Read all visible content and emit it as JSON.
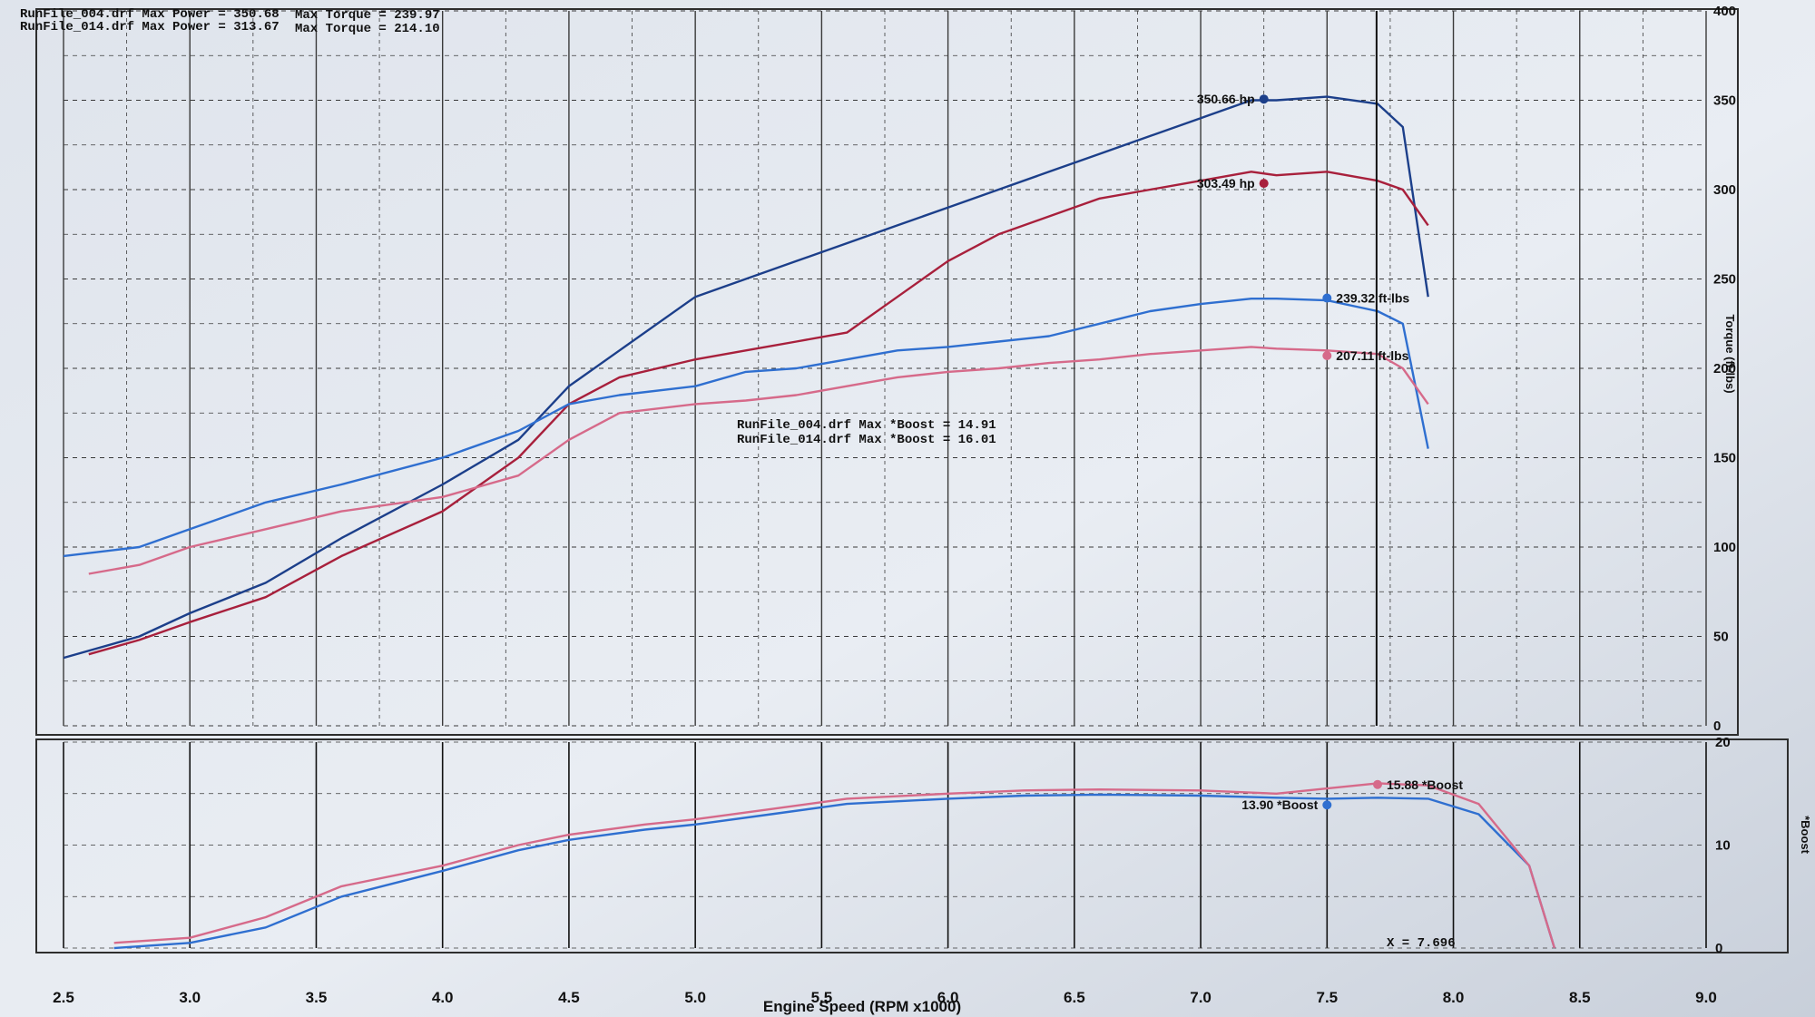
{
  "header": {
    "lines": [
      {
        "power": "RunFile_004.drf Max Power = 350.68",
        "torque": "Max Torque = 239.97"
      },
      {
        "power": "RunFile_014.drf Max Power = 313.67",
        "torque": "Max Torque = 214.10"
      }
    ]
  },
  "boost_note": {
    "lines": [
      "RunFile_004.drf Max *Boost = 14.91",
      "RunFile_014.drf Max *Boost = 16.01"
    ]
  },
  "cursor_label": "X = 7.696",
  "colors": {
    "run_004": "#2060c8",
    "run_014": "#c83c5a",
    "grid": "#3a3a3a",
    "paper": "#e8ecf2"
  },
  "chart_data": [
    {
      "type": "line",
      "title": "",
      "xlabel": "Engine Speed (RPM x1000)",
      "ylabel": "Torque (ft-lbs)",
      "xlim": [
        2.5,
        9.0
      ],
      "ylim": [
        0,
        400
      ],
      "x_ticks": [
        "2.5",
        "3.0",
        "3.5",
        "4.0",
        "4.5",
        "5.0",
        "5.5",
        "6.0",
        "6.5",
        "7.0",
        "7.5",
        "8.0",
        "8.5",
        "9.0"
      ],
      "y_ticks": [
        "0",
        "50",
        "100",
        "150",
        "200",
        "250",
        "300",
        "350",
        "400"
      ],
      "grid": true,
      "series": [
        {
          "name": "RunFile_004.drf Power",
          "color": "#1c3f8a",
          "x": [
            2.5,
            2.8,
            3.0,
            3.3,
            3.6,
            4.0,
            4.3,
            4.5,
            4.7,
            5.0,
            5.2,
            5.4,
            5.6,
            5.8,
            6.0,
            6.2,
            6.4,
            6.6,
            6.8,
            7.0,
            7.2,
            7.3,
            7.5,
            7.7,
            7.8,
            7.9
          ],
          "y": [
            38,
            50,
            63,
            80,
            105,
            135,
            160,
            190,
            210,
            240,
            250,
            260,
            270,
            280,
            290,
            300,
            310,
            320,
            330,
            340,
            350,
            350,
            352,
            348,
            335,
            240
          ]
        },
        {
          "name": "RunFile_014.drf Power",
          "color": "#a8203c",
          "x": [
            2.6,
            2.8,
            3.0,
            3.3,
            3.6,
            4.0,
            4.3,
            4.5,
            4.7,
            5.0,
            5.2,
            5.4,
            5.6,
            5.8,
            6.0,
            6.2,
            6.4,
            6.6,
            6.8,
            7.0,
            7.2,
            7.3,
            7.5,
            7.7,
            7.8,
            7.9
          ],
          "y": [
            40,
            48,
            58,
            72,
            95,
            120,
            150,
            180,
            195,
            205,
            210,
            215,
            220,
            240,
            260,
            275,
            285,
            295,
            300,
            305,
            310,
            308,
            310,
            305,
            300,
            280
          ]
        },
        {
          "name": "RunFile_004.drf Torque",
          "color": "#2f6fd0",
          "x": [
            2.5,
            2.8,
            3.0,
            3.3,
            3.6,
            4.0,
            4.3,
            4.5,
            4.7,
            5.0,
            5.2,
            5.4,
            5.6,
            5.8,
            6.0,
            6.2,
            6.4,
            6.6,
            6.8,
            7.0,
            7.2,
            7.3,
            7.5,
            7.7,
            7.8,
            7.9
          ],
          "y": [
            95,
            100,
            110,
            125,
            135,
            150,
            165,
            180,
            185,
            190,
            198,
            200,
            205,
            210,
            212,
            215,
            218,
            225,
            232,
            236,
            239,
            239,
            238,
            232,
            225,
            155
          ]
        },
        {
          "name": "RunFile_014.drf Torque",
          "color": "#d66a8a",
          "x": [
            2.6,
            2.8,
            3.0,
            3.3,
            3.6,
            4.0,
            4.3,
            4.5,
            4.7,
            5.0,
            5.2,
            5.4,
            5.6,
            5.8,
            6.0,
            6.2,
            6.4,
            6.6,
            6.8,
            7.0,
            7.2,
            7.3,
            7.5,
            7.7,
            7.8,
            7.9
          ],
          "y": [
            85,
            90,
            100,
            110,
            120,
            128,
            140,
            160,
            175,
            180,
            182,
            185,
            190,
            195,
            198,
            200,
            203,
            205,
            208,
            210,
            212,
            211,
            210,
            208,
            200,
            180
          ]
        }
      ],
      "annotations": [
        {
          "label": "350.66 hp",
          "x": 7.25,
          "y": 350.66,
          "color": "#1c3f8a"
        },
        {
          "label": "303.49 hp",
          "x": 7.25,
          "y": 303.49,
          "color": "#a8203c"
        },
        {
          "label": "239.32 ft-lbs",
          "x": 7.5,
          "y": 239.32,
          "color": "#2f6fd0"
        },
        {
          "label": "207.11 ft-lbs",
          "x": 7.5,
          "y": 207.11,
          "color": "#d66a8a"
        }
      ]
    },
    {
      "type": "line",
      "title": "",
      "xlabel": "Engine Speed (RPM x1000)",
      "ylabel": "*Boost",
      "xlim": [
        2.5,
        9.0
      ],
      "ylim": [
        0,
        20
      ],
      "y_ticks": [
        "0",
        "10",
        "20"
      ],
      "grid": true,
      "series": [
        {
          "name": "RunFile_004.drf *Boost",
          "color": "#2f6fd0",
          "x": [
            2.7,
            3.0,
            3.3,
            3.6,
            4.0,
            4.3,
            4.5,
            4.8,
            5.0,
            5.3,
            5.6,
            6.0,
            6.3,
            6.6,
            7.0,
            7.3,
            7.5,
            7.7,
            7.9,
            8.1,
            8.3,
            8.4
          ],
          "y": [
            0,
            0.5,
            2,
            5,
            7.5,
            9.5,
            10.5,
            11.5,
            12.0,
            13.0,
            14.0,
            14.5,
            14.8,
            14.9,
            14.8,
            14.6,
            14.5,
            14.6,
            14.5,
            13.0,
            8.0,
            0
          ]
        },
        {
          "name": "RunFile_014.drf *Boost",
          "color": "#d66a8a",
          "x": [
            2.7,
            3.0,
            3.3,
            3.6,
            4.0,
            4.3,
            4.5,
            4.8,
            5.0,
            5.3,
            5.6,
            6.0,
            6.3,
            6.6,
            7.0,
            7.3,
            7.5,
            7.7,
            7.9,
            8.1,
            8.3,
            8.4
          ],
          "y": [
            0.5,
            1,
            3,
            6,
            8,
            10,
            11,
            12.0,
            12.5,
            13.5,
            14.5,
            15.0,
            15.3,
            15.4,
            15.3,
            15.0,
            15.5,
            16.0,
            15.8,
            14.0,
            8.0,
            0
          ]
        }
      ],
      "annotations": [
        {
          "label": "13.90 *Boost",
          "x": 7.5,
          "y": 13.9,
          "color": "#2f6fd0"
        },
        {
          "label": "15.88 *Boost",
          "x": 7.7,
          "y": 15.88,
          "color": "#d66a8a"
        }
      ]
    }
  ]
}
